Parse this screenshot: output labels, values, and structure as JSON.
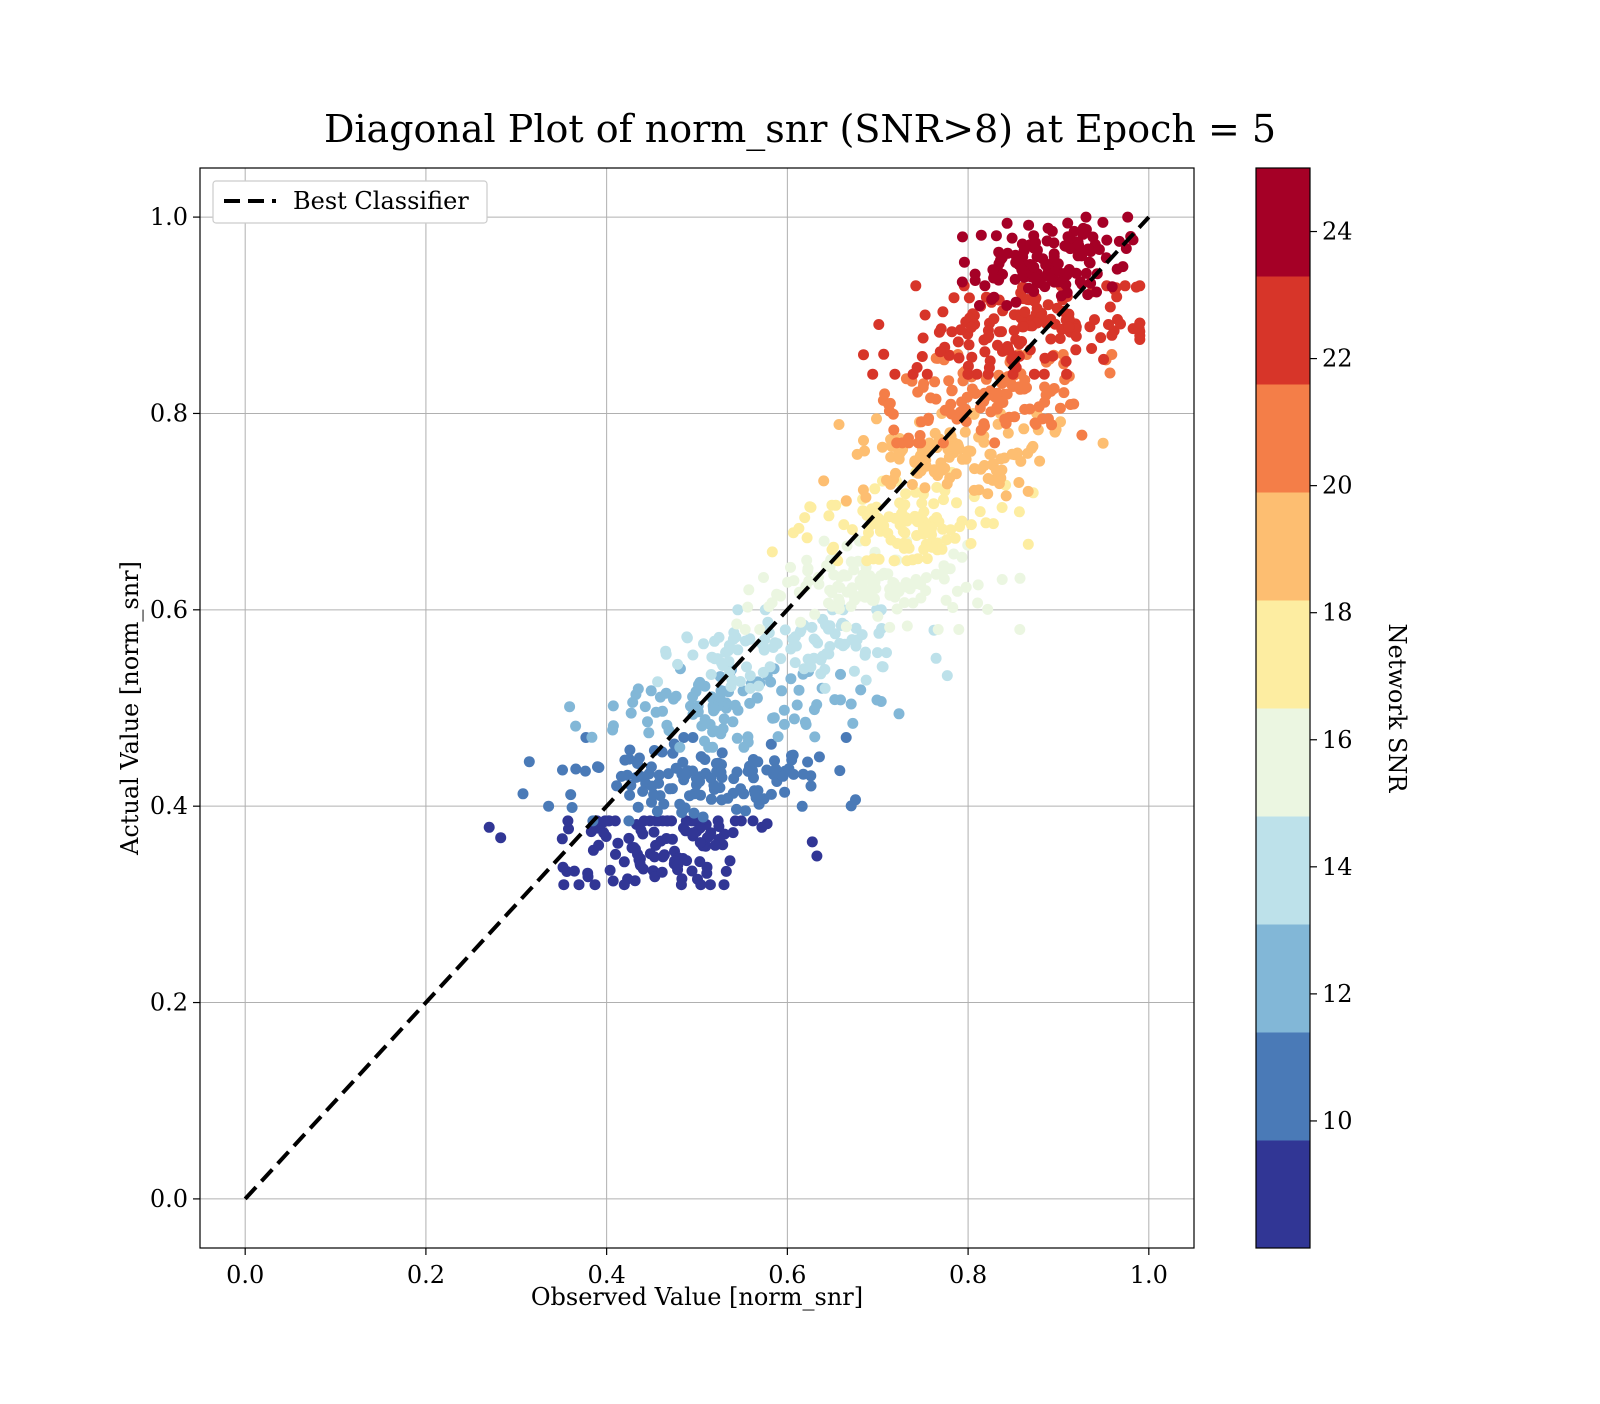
{
  "chart_data": {
    "type": "scatter",
    "title": "Diagonal Plot of norm_snr (SNR>8) at Epoch = 5",
    "xlabel": "Observed Value [norm_snr]",
    "ylabel": "Actual Value [norm_snr]",
    "xlim": [
      -0.05,
      1.05
    ],
    "ylim": [
      -0.05,
      1.05
    ],
    "xticks": [
      0.0,
      0.2,
      0.4,
      0.6,
      0.8,
      1.0
    ],
    "yticks": [
      0.0,
      0.2,
      0.4,
      0.6,
      0.8,
      1.0
    ],
    "xtick_labels": [
      "0.0",
      "0.2",
      "0.4",
      "0.6",
      "0.8",
      "1.0"
    ],
    "ytick_labels": [
      "0.0",
      "0.2",
      "0.4",
      "0.6",
      "0.8",
      "1.0"
    ],
    "grid": true,
    "legend": {
      "position": "top-left",
      "entries": [
        "Best Classifier"
      ]
    },
    "reference_line": {
      "name": "Best Classifier",
      "x": [
        0.0,
        1.0
      ],
      "y": [
        0.0,
        1.0
      ],
      "style": "dashed",
      "color": "#000000"
    },
    "colorbar": {
      "label": "Network SNR",
      "range": [
        8,
        25
      ],
      "ticks": [
        10,
        12,
        14,
        16,
        18,
        20,
        22,
        24
      ],
      "tick_labels": [
        "10",
        "12",
        "14",
        "16",
        "18",
        "20",
        "22",
        "24"
      ],
      "bins": [
        {
          "min": 8,
          "max": 9.7,
          "color": "#313695"
        },
        {
          "min": 9.7,
          "max": 11.4,
          "color": "#4a7ab7"
        },
        {
          "min": 11.4,
          "max": 13.1,
          "color": "#82b7d7"
        },
        {
          "min": 13.1,
          "max": 14.8,
          "color": "#bde1ea"
        },
        {
          "min": 14.8,
          "max": 16.5,
          "color": "#ebf6e1"
        },
        {
          "min": 16.5,
          "max": 18.2,
          "color": "#fdeda1"
        },
        {
          "min": 18.2,
          "max": 19.9,
          "color": "#fdbe71"
        },
        {
          "min": 19.9,
          "max": 21.6,
          "color": "#f47e48"
        },
        {
          "min": 21.6,
          "max": 23.3,
          "color": "#d73529"
        },
        {
          "min": 23.3,
          "max": 25,
          "color": "#a50026"
        }
      ]
    },
    "point_clusters": [
      {
        "snr_bin": 0,
        "x_center": 0.45,
        "y_center": 0.355,
        "x_spread": 0.06,
        "y_spread": 0.025,
        "y_min": 0.32,
        "y_max": 0.385,
        "count": 120
      },
      {
        "snr_bin": 1,
        "x_center": 0.51,
        "y_center": 0.43,
        "x_spread": 0.07,
        "y_spread": 0.022,
        "y_min": 0.385,
        "y_max": 0.47,
        "count": 130
      },
      {
        "snr_bin": 2,
        "x_center": 0.535,
        "y_center": 0.5,
        "x_spread": 0.07,
        "y_spread": 0.02,
        "y_min": 0.46,
        "y_max": 0.54,
        "count": 110
      },
      {
        "snr_bin": 3,
        "x_center": 0.59,
        "y_center": 0.565,
        "x_spread": 0.065,
        "y_spread": 0.02,
        "y_min": 0.52,
        "y_max": 0.6,
        "count": 110
      },
      {
        "snr_bin": 4,
        "x_center": 0.69,
        "y_center": 0.625,
        "x_spread": 0.06,
        "y_spread": 0.022,
        "y_min": 0.58,
        "y_max": 0.67,
        "count": 130
      },
      {
        "snr_bin": 5,
        "x_center": 0.74,
        "y_center": 0.69,
        "x_spread": 0.06,
        "y_spread": 0.025,
        "y_min": 0.65,
        "y_max": 0.74,
        "count": 120
      },
      {
        "snr_bin": 6,
        "x_center": 0.79,
        "y_center": 0.76,
        "x_spread": 0.06,
        "y_spread": 0.025,
        "y_min": 0.7,
        "y_max": 0.8,
        "count": 120
      },
      {
        "snr_bin": 7,
        "x_center": 0.82,
        "y_center": 0.815,
        "x_spread": 0.06,
        "y_spread": 0.025,
        "y_min": 0.77,
        "y_max": 0.86,
        "count": 120
      },
      {
        "snr_bin": 8,
        "x_center": 0.86,
        "y_center": 0.885,
        "x_spread": 0.06,
        "y_spread": 0.025,
        "y_min": 0.84,
        "y_max": 0.93,
        "count": 150
      },
      {
        "snr_bin": 9,
        "x_center": 0.89,
        "y_center": 0.955,
        "x_spread": 0.045,
        "y_spread": 0.02,
        "y_min": 0.91,
        "y_max": 1.0,
        "count": 130
      }
    ]
  }
}
